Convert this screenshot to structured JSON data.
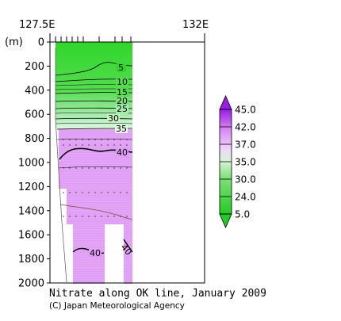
{
  "chart_data": {
    "type": "heatmap",
    "title": "Nitrate along OK line, January 2009",
    "credit": "(C) Japan Meteorological Agency",
    "x_ticks": [
      "127.5E",
      "132E"
    ],
    "y_unit": "(m)",
    "y_ticks": [
      0,
      200,
      400,
      600,
      800,
      1000,
      1200,
      1400,
      1600,
      1800,
      2000
    ],
    "ylim": [
      0,
      2000
    ],
    "colorbar": {
      "labels": [
        "45.0",
        "42.0",
        "37.0",
        "35.0",
        "30.0",
        "24.0",
        "5.0"
      ],
      "colors": [
        "#9a1ce8",
        "#cc66ee",
        "#e89cf8",
        "#c6f2c4",
        "#8ee68a",
        "#3ed83a",
        "#22cc22"
      ]
    },
    "contours": [
      {
        "label": "5",
        "depth": 260
      },
      {
        "label": "10",
        "depth": 330
      },
      {
        "label": "15",
        "depth": 420
      },
      {
        "label": "20",
        "depth": 490
      },
      {
        "label": "25",
        "depth": 550
      },
      {
        "label": "30",
        "depth": 640
      },
      {
        "label": "35",
        "depth": 720
      },
      {
        "label": "40",
        "depth": 900
      },
      {
        "label": "40",
        "depth": 1800
      },
      {
        "label": "40",
        "depth": 1720
      }
    ]
  }
}
